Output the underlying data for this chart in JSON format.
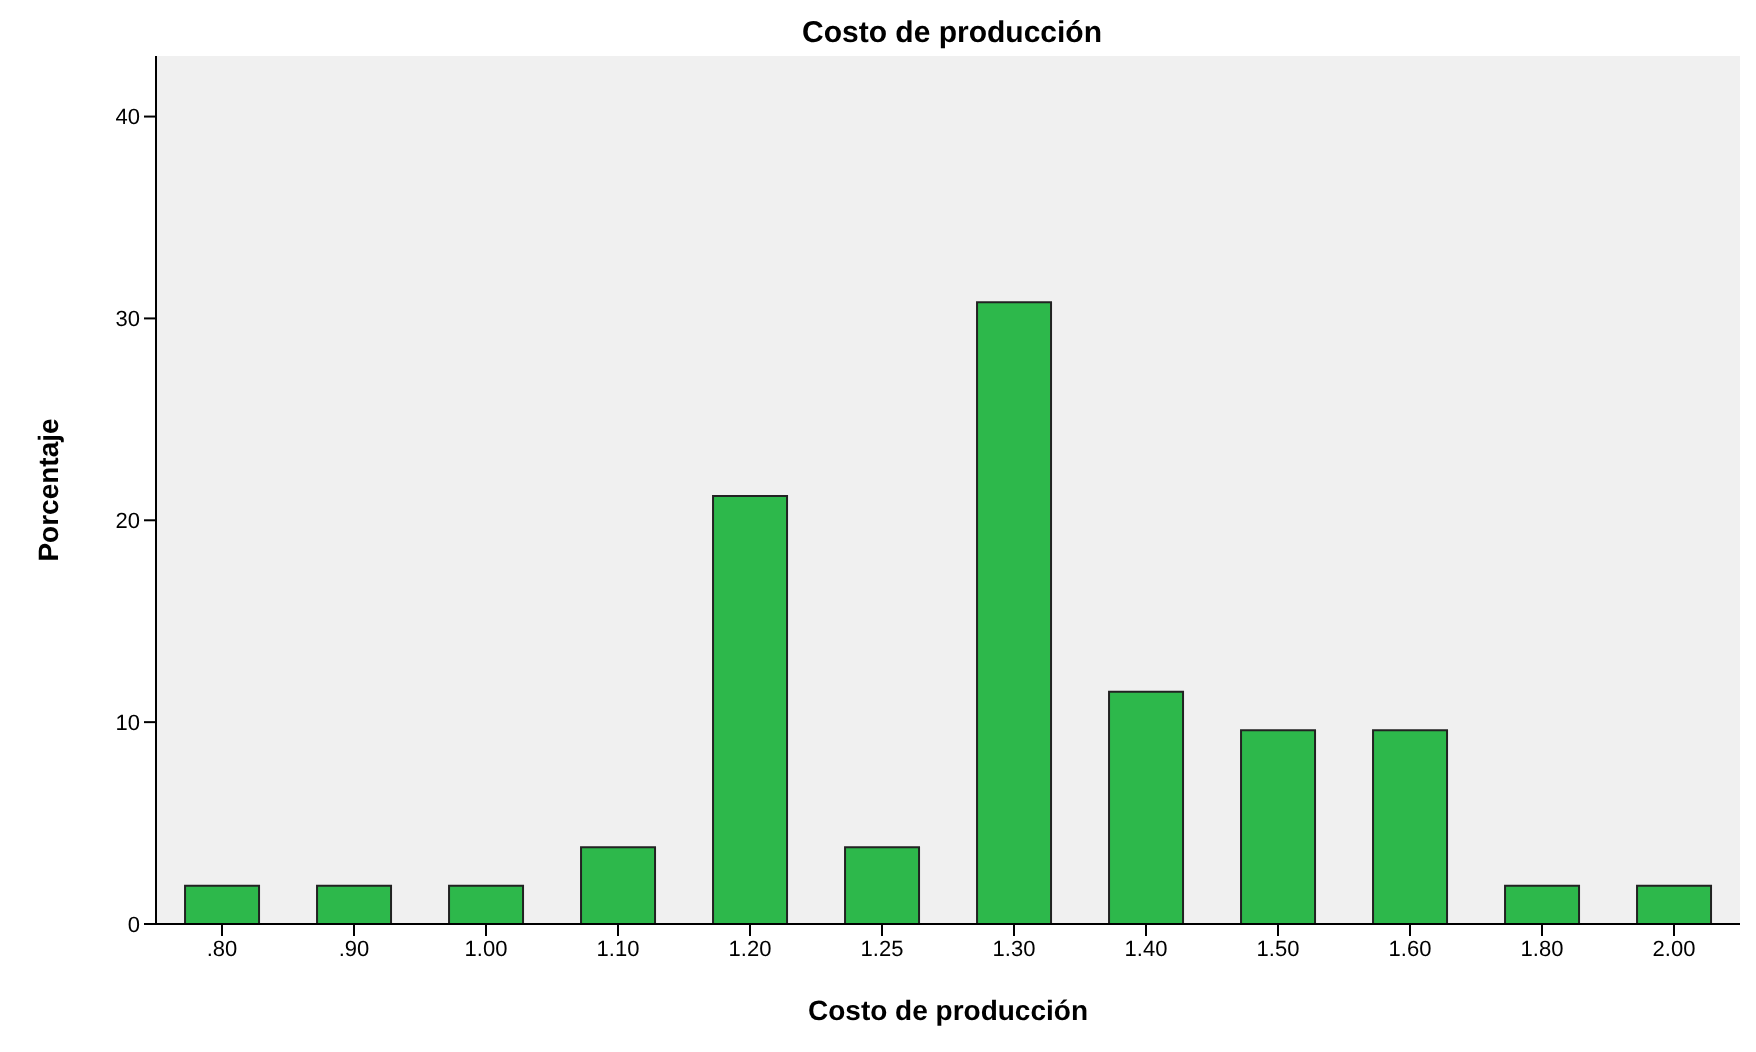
{
  "chart_data": {
    "type": "bar",
    "title": "Costo de producción",
    "xlabel": "Costo de producción",
    "ylabel": "Porcentaje",
    "categories": [
      ".80",
      ".90",
      "1.00",
      "1.10",
      "1.20",
      "1.25",
      "1.30",
      "1.40",
      "1.50",
      "1.60",
      "1.80",
      "2.00"
    ],
    "values": [
      1.9,
      1.9,
      1.9,
      3.8,
      21.2,
      3.8,
      30.8,
      11.5,
      9.6,
      9.6,
      1.9,
      1.9
    ],
    "color": "#2db84b",
    "ylim": [
      0,
      43
    ],
    "yticks": [
      0,
      10,
      20,
      30,
      40
    ],
    "grid": false,
    "legend": false
  }
}
